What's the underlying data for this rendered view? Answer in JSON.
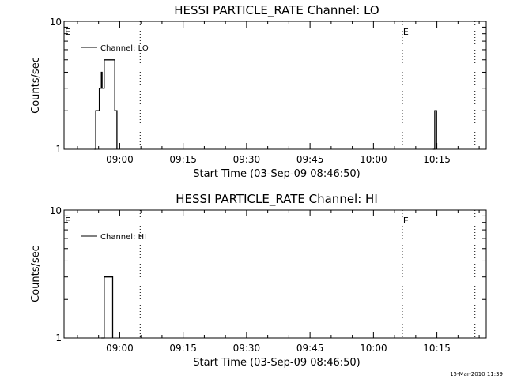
{
  "footer": {
    "timestamp": "15-Mar-2010 11:39"
  },
  "chart_data": [
    {
      "type": "line",
      "title": "HESSI PARTICLE_RATE Channel: LO",
      "xlabel": "Start Time (03-Sep-09 08:46:50)",
      "ylabel": "Counts/sec",
      "yscale": "log",
      "ylim": [
        1,
        10
      ],
      "y_tick_labels": [
        "1",
        "10"
      ],
      "xlim": [
        "08:46:50",
        "10:26:40"
      ],
      "x_ticks": [
        "09:00",
        "09:15",
        "09:30",
        "09:45",
        "10:00",
        "10:15"
      ],
      "legend": {
        "position": "top-left",
        "entries": [
          "Channel: LO"
        ]
      },
      "series": [
        {
          "name": "Channel: LO",
          "points": [
            [
              "08:54:00",
              1
            ],
            [
              "08:54:20",
              2
            ],
            [
              "08:54:50",
              2
            ],
            [
              "08:55:10",
              3
            ],
            [
              "08:55:40",
              4
            ],
            [
              "08:55:50",
              3
            ],
            [
              "08:56:20",
              5
            ],
            [
              "08:57:50",
              5
            ],
            [
              "08:58:50",
              2
            ],
            [
              "08:59:20",
              1
            ],
            [
              "10:14:05",
              1
            ],
            [
              "10:14:30",
              2
            ],
            [
              "10:14:55",
              1
            ]
          ]
        }
      ],
      "markers": [
        {
          "label": "E",
          "time": "08:46:50"
        },
        {
          "label": "",
          "time": "09:04:50"
        },
        {
          "label": "E",
          "time": "10:06:50"
        },
        {
          "label": "",
          "time": "10:24:00"
        }
      ]
    },
    {
      "type": "line",
      "title": "HESSI PARTICLE_RATE Channel: HI",
      "xlabel": "Start Time (03-Sep-09 08:46:50)",
      "ylabel": "Counts/sec",
      "yscale": "log",
      "ylim": [
        1,
        10
      ],
      "y_tick_labels": [
        "1",
        "10"
      ],
      "xlim": [
        "08:46:50",
        "10:26:40"
      ],
      "x_ticks": [
        "09:00",
        "09:15",
        "09:30",
        "09:45",
        "10:00",
        "10:15"
      ],
      "legend": {
        "position": "top-left",
        "entries": [
          "Channel: HI"
        ]
      },
      "series": [
        {
          "name": "Channel: HI",
          "points": [
            [
              "08:55:40",
              1
            ],
            [
              "08:56:20",
              3
            ],
            [
              "08:57:40",
              3
            ],
            [
              "08:58:20",
              1
            ]
          ]
        }
      ],
      "markers": [
        {
          "label": "E",
          "time": "08:46:50"
        },
        {
          "label": "",
          "time": "09:04:50"
        },
        {
          "label": "E",
          "time": "10:06:50"
        },
        {
          "label": "",
          "time": "10:24:00"
        }
      ]
    }
  ]
}
